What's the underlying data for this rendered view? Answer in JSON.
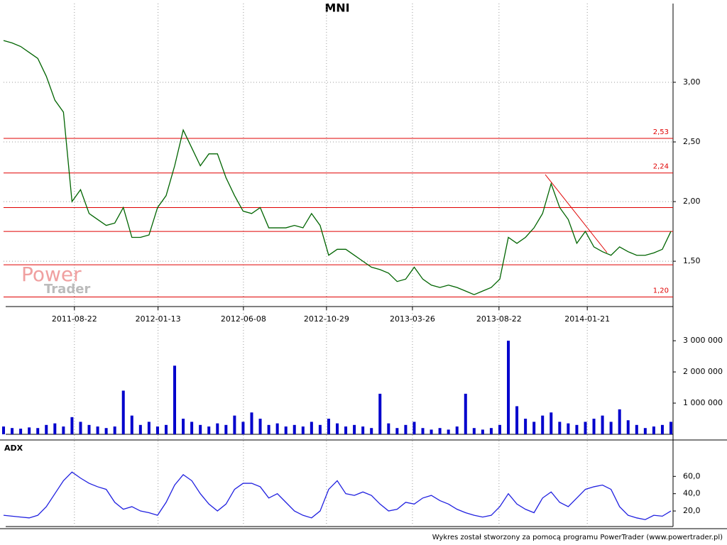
{
  "chart_data": [
    {
      "type": "line",
      "title": "MNI",
      "color": "#006400",
      "xlim": [
        "2011-04-22",
        "2014-06-14"
      ],
      "xticks": [
        "2011-08-22",
        "2012-01-13",
        "2012-06-08",
        "2012-10-29",
        "2013-03-26",
        "2013-08-22",
        "2014-01-21"
      ],
      "ylim": [
        1.12,
        3.66
      ],
      "yticks": [
        {
          "value": 1.5,
          "label": "1,50"
        },
        {
          "value": 2,
          "label": "2,00"
        },
        {
          "value": 2.5,
          "label": "2,50"
        },
        {
          "value": 3,
          "label": "3,00"
        }
      ],
      "grid": true,
      "values": [
        3.35,
        3.33,
        3.3,
        3.25,
        3.2,
        3.05,
        2.85,
        2.75,
        2.0,
        2.1,
        1.9,
        1.85,
        1.8,
        1.82,
        1.95,
        1.7,
        1.7,
        1.72,
        1.95,
        2.05,
        2.3,
        2.6,
        2.45,
        2.3,
        2.4,
        2.4,
        2.2,
        2.05,
        1.92,
        1.9,
        1.95,
        1.78,
        1.78,
        1.78,
        1.8,
        1.78,
        1.9,
        1.8,
        1.55,
        1.6,
        1.6,
        1.55,
        1.5,
        1.45,
        1.43,
        1.4,
        1.33,
        1.35,
        1.45,
        1.35,
        1.3,
        1.28,
        1.3,
        1.28,
        1.25,
        1.22,
        1.25,
        1.28,
        1.35,
        1.7,
        1.65,
        1.7,
        1.78,
        1.9,
        2.15,
        1.95,
        1.85,
        1.65,
        1.75,
        1.62,
        1.58,
        1.55,
        1.62,
        1.58,
        1.55,
        1.55,
        1.57,
        1.6,
        1.75
      ],
      "levels": [
        {
          "value": 2.53,
          "label": "2,53"
        },
        {
          "value": 2.24,
          "label": "2,24"
        },
        {
          "value": 1.95
        },
        {
          "value": 1.75
        },
        {
          "value": 1.47
        },
        {
          "value": 1.2,
          "label": "1,20"
        }
      ],
      "watermark": [
        "Power",
        "Trader"
      ]
    },
    {
      "type": "bar",
      "color": "#0000cc",
      "ylim": [
        0,
        3140000
      ],
      "yticks": [
        {
          "value": 1000000,
          "label": "1 000 000"
        },
        {
          "value": 2000000,
          "label": "2 000 000"
        },
        {
          "value": 3000000,
          "label": "3 000 000"
        }
      ],
      "values": [
        250000,
        200000,
        180000,
        220000,
        200000,
        300000,
        350000,
        250000,
        550000,
        400000,
        300000,
        250000,
        200000,
        250000,
        1400000,
        600000,
        300000,
        400000,
        250000,
        300000,
        2200000,
        500000,
        400000,
        300000,
        250000,
        350000,
        300000,
        600000,
        400000,
        700000,
        500000,
        300000,
        350000,
        250000,
        300000,
        250000,
        400000,
        300000,
        500000,
        350000,
        250000,
        300000,
        250000,
        200000,
        1300000,
        350000,
        200000,
        300000,
        400000,
        200000,
        150000,
        200000,
        150000,
        250000,
        1300000,
        200000,
        150000,
        200000,
        300000,
        3000000,
        900000,
        500000,
        400000,
        600000,
        700000,
        400000,
        350000,
        300000,
        400000,
        500000,
        600000,
        400000,
        800000,
        450000,
        300000,
        200000,
        250000,
        300000,
        400000
      ]
    },
    {
      "type": "line",
      "title": "ADX",
      "color": "#2020e0",
      "ylim": [
        2,
        98
      ],
      "yticks": [
        {
          "value": 20,
          "label": "20,0"
        },
        {
          "value": 40,
          "label": "40,0"
        },
        {
          "value": 60,
          "label": "60,0"
        }
      ],
      "values": [
        15,
        14,
        13,
        12,
        15,
        25,
        40,
        55,
        65,
        58,
        52,
        48,
        45,
        30,
        22,
        25,
        20,
        18,
        15,
        30,
        50,
        62,
        55,
        40,
        28,
        20,
        28,
        45,
        52,
        52,
        48,
        35,
        40,
        30,
        20,
        15,
        12,
        20,
        45,
        55,
        40,
        38,
        42,
        38,
        28,
        20,
        22,
        30,
        28,
        35,
        38,
        32,
        28,
        22,
        18,
        15,
        13,
        15,
        25,
        40,
        28,
        22,
        18,
        35,
        42,
        30,
        25,
        35,
        45,
        48,
        50,
        45,
        25,
        15,
        12,
        10,
        15,
        14,
        20
      ],
      "footer": "Wykres został stworzony za pomocą programu PowerTrader (www.powertrader.pl)"
    }
  ]
}
